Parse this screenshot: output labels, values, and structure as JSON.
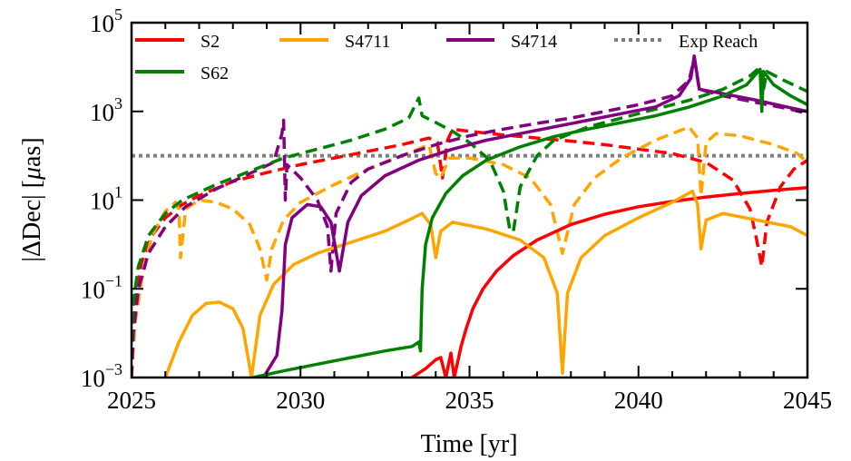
{
  "chart_data": {
    "type": "line",
    "title": "",
    "xlabel": "Time [yr]",
    "ylabel": "|ΔDec| [μas]",
    "ylabel_parts": {
      "prefix": "|ΔDec| [",
      "mu": "μ",
      "suffix": "as]"
    },
    "xscale": "linear",
    "yscale": "log",
    "xlim": [
      2025,
      2045
    ],
    "ylim": [
      0.001,
      100000
    ],
    "xticks": [
      2025,
      2030,
      2035,
      2040,
      2045
    ],
    "xtick_labels": [
      "2025",
      "2030",
      "2035",
      "2040",
      "2045"
    ],
    "yticks": [
      {
        "base": "10",
        "exp": "5",
        "value": 100000
      },
      {
        "base": "10",
        "exp": "3",
        "value": 1000
      },
      {
        "base": "10",
        "exp": "1",
        "value": 10
      },
      {
        "base": "10",
        "exp": "−1",
        "value": 0.1
      },
      {
        "base": "10",
        "exp": "−3",
        "value": 0.001
      }
    ],
    "grid": false,
    "legend": {
      "placement": "top",
      "entries": [
        {
          "label": "S2",
          "color": "#ff0000",
          "style": "solid"
        },
        {
          "label": "S4711",
          "color": "#ffa500",
          "style": "solid"
        },
        {
          "label": "S4714",
          "color": "#800080",
          "style": "solid"
        },
        {
          "label": "Exp Reach",
          "color": "#808080",
          "style": "dotted"
        },
        {
          "label": "S62",
          "color": "#008000",
          "style": "solid"
        }
      ]
    },
    "reference_line": {
      "name": "Exp Reach",
      "value": 100,
      "color": "#808080",
      "style": "dotted"
    },
    "note": "series points are [year, log10(|dDec| in uas)]",
    "series": [
      {
        "name": "S2",
        "variant": "solid",
        "color": "#ff0000",
        "points": [
          [
            2033.3,
            -3.0
          ],
          [
            2033.7,
            -2.8
          ],
          [
            2034.0,
            -2.6
          ],
          [
            2034.15,
            -2.55
          ],
          [
            2034.3,
            -3.0
          ],
          [
            2034.45,
            -2.45
          ],
          [
            2034.55,
            -3.0
          ],
          [
            2034.75,
            -2.3
          ],
          [
            2034.9,
            -1.9
          ],
          [
            2035.1,
            -1.45
          ],
          [
            2035.4,
            -1.0
          ],
          [
            2035.8,
            -0.6
          ],
          [
            2036.3,
            -0.25
          ],
          [
            2037.0,
            0.1
          ],
          [
            2038.0,
            0.45
          ],
          [
            2039.0,
            0.68
          ],
          [
            2040.0,
            0.85
          ],
          [
            2041.0,
            0.97
          ],
          [
            2042.0,
            1.07
          ],
          [
            2043.0,
            1.15
          ],
          [
            2044.0,
            1.22
          ],
          [
            2045.0,
            1.28
          ]
        ]
      },
      {
        "name": "S2",
        "variant": "dashed",
        "color": "#ff0000",
        "points": [
          [
            2025.0,
            -3.0
          ],
          [
            2025.05,
            -1.8
          ],
          [
            2025.15,
            -1.0
          ],
          [
            2025.3,
            -0.4
          ],
          [
            2025.6,
            0.2
          ],
          [
            2026.0,
            0.6
          ],
          [
            2026.5,
            0.9
          ],
          [
            2027.0,
            1.1
          ],
          [
            2028.0,
            1.42
          ],
          [
            2029.0,
            1.62
          ],
          [
            2030.0,
            1.8
          ],
          [
            2031.0,
            1.95
          ],
          [
            2032.0,
            2.1
          ],
          [
            2033.0,
            2.25
          ],
          [
            2033.8,
            2.4
          ],
          [
            2034.05,
            2.3
          ],
          [
            2034.2,
            1.5
          ],
          [
            2034.35,
            2.35
          ],
          [
            2034.5,
            2.6
          ],
          [
            2035.0,
            2.55
          ],
          [
            2036.0,
            2.47
          ],
          [
            2037.0,
            2.4
          ],
          [
            2038.0,
            2.33
          ],
          [
            2039.0,
            2.25
          ],
          [
            2040.0,
            2.15
          ],
          [
            2041.0,
            2.05
          ],
          [
            2042.0,
            1.85
          ],
          [
            2042.8,
            1.45
          ],
          [
            2043.3,
            0.8
          ],
          [
            2043.5,
            0.1
          ],
          [
            2043.65,
            -0.5
          ],
          [
            2043.8,
            0.5
          ],
          [
            2044.2,
            1.3
          ],
          [
            2044.6,
            1.7
          ],
          [
            2045.0,
            1.9
          ]
        ]
      },
      {
        "name": "S4711",
        "variant": "solid",
        "color": "#ffa500",
        "points": [
          [
            2026.0,
            -3.0
          ],
          [
            2026.4,
            -2.2
          ],
          [
            2026.8,
            -1.6
          ],
          [
            2027.2,
            -1.33
          ],
          [
            2027.6,
            -1.3
          ],
          [
            2028.0,
            -1.45
          ],
          [
            2028.3,
            -1.9
          ],
          [
            2028.55,
            -3.0
          ],
          [
            2028.8,
            -1.6
          ],
          [
            2029.2,
            -0.9
          ],
          [
            2029.8,
            -0.45
          ],
          [
            2030.5,
            -0.2
          ],
          [
            2031.5,
            0.05
          ],
          [
            2032.5,
            0.3
          ],
          [
            2033.2,
            0.55
          ],
          [
            2033.6,
            0.7
          ],
          [
            2033.85,
            0.45
          ],
          [
            2034.0,
            -0.3
          ],
          [
            2034.15,
            0.3
          ],
          [
            2034.5,
            0.5
          ],
          [
            2035.5,
            0.35
          ],
          [
            2036.5,
            0.1
          ],
          [
            2037.2,
            -0.3
          ],
          [
            2037.6,
            -1.1
          ],
          [
            2037.75,
            -2.9
          ],
          [
            2037.9,
            -1.1
          ],
          [
            2038.3,
            -0.3
          ],
          [
            2039.0,
            0.2
          ],
          [
            2040.0,
            0.6
          ],
          [
            2041.0,
            0.95
          ],
          [
            2041.6,
            1.2
          ],
          [
            2041.75,
            0.9
          ],
          [
            2041.85,
            -0.1
          ],
          [
            2042.0,
            0.55
          ],
          [
            2042.5,
            0.7
          ],
          [
            2043.5,
            0.55
          ],
          [
            2044.5,
            0.4
          ],
          [
            2045.0,
            0.2
          ]
        ]
      },
      {
        "name": "S4711",
        "variant": "dashed",
        "color": "#ffa500",
        "points": [
          [
            2025.0,
            -3.0
          ],
          [
            2025.1,
            -1.8
          ],
          [
            2025.3,
            -0.8
          ],
          [
            2025.6,
            0.2
          ],
          [
            2026.0,
            0.75
          ],
          [
            2026.3,
            0.95
          ],
          [
            2026.4,
            0.8
          ],
          [
            2026.45,
            -0.3
          ],
          [
            2026.6,
            0.8
          ],
          [
            2027.0,
            1.0
          ],
          [
            2027.5,
            0.95
          ],
          [
            2028.0,
            0.8
          ],
          [
            2028.5,
            0.45
          ],
          [
            2028.8,
            -0.1
          ],
          [
            2029.0,
            -0.8
          ],
          [
            2029.15,
            -0.1
          ],
          [
            2029.5,
            0.55
          ],
          [
            2030.0,
            0.95
          ],
          [
            2031.0,
            1.35
          ],
          [
            2032.0,
            1.7
          ],
          [
            2033.0,
            2.0
          ],
          [
            2033.8,
            2.25
          ],
          [
            2034.0,
            1.6
          ],
          [
            2034.15,
            1.5
          ],
          [
            2034.4,
            1.95
          ],
          [
            2035.0,
            1.95
          ],
          [
            2036.0,
            1.8
          ],
          [
            2036.8,
            1.5
          ],
          [
            2037.4,
            0.9
          ],
          [
            2037.75,
            -0.2
          ],
          [
            2038.1,
            0.9
          ],
          [
            2038.7,
            1.5
          ],
          [
            2039.5,
            1.95
          ],
          [
            2040.5,
            2.35
          ],
          [
            2041.5,
            2.65
          ],
          [
            2041.75,
            2.4
          ],
          [
            2041.85,
            1.1
          ],
          [
            2042.0,
            2.3
          ],
          [
            2042.3,
            2.5
          ],
          [
            2043.0,
            2.45
          ],
          [
            2044.0,
            2.25
          ],
          [
            2044.7,
            2.05
          ],
          [
            2045.0,
            1.85
          ]
        ]
      },
      {
        "name": "S4714",
        "variant": "solid",
        "color": "#800080",
        "points": [
          [
            2028.9,
            -3.0
          ],
          [
            2029.3,
            -2.5
          ],
          [
            2029.45,
            -1.5
          ],
          [
            2029.55,
            0.0
          ],
          [
            2029.75,
            0.6
          ],
          [
            2030.2,
            0.9
          ],
          [
            2030.6,
            0.85
          ],
          [
            2030.9,
            0.5
          ],
          [
            2031.15,
            -0.6
          ],
          [
            2031.4,
            0.5
          ],
          [
            2031.8,
            1.1
          ],
          [
            2032.5,
            1.55
          ],
          [
            2033.5,
            1.9
          ],
          [
            2034.5,
            2.15
          ],
          [
            2035.5,
            2.35
          ],
          [
            2036.5,
            2.5
          ],
          [
            2037.5,
            2.65
          ],
          [
            2038.5,
            2.8
          ],
          [
            2039.5,
            2.95
          ],
          [
            2040.5,
            3.1
          ],
          [
            2041.2,
            3.35
          ],
          [
            2041.55,
            3.75
          ],
          [
            2041.65,
            4.25
          ],
          [
            2041.8,
            3.5
          ],
          [
            2042.5,
            3.4
          ],
          [
            2043.5,
            3.25
          ],
          [
            2044.5,
            3.08
          ],
          [
            2045.0,
            3.0
          ]
        ]
      },
      {
        "name": "S4714",
        "variant": "dashed",
        "color": "#800080",
        "points": [
          [
            2025.0,
            -3.0
          ],
          [
            2025.05,
            -2.0
          ],
          [
            2025.2,
            -1.0
          ],
          [
            2025.5,
            -0.2
          ],
          [
            2026.0,
            0.4
          ],
          [
            2026.6,
            0.85
          ],
          [
            2027.5,
            1.25
          ],
          [
            2028.5,
            1.6
          ],
          [
            2029.2,
            1.85
          ],
          [
            2029.45,
            2.5
          ],
          [
            2029.5,
            2.8
          ],
          [
            2029.55,
            1.0
          ],
          [
            2029.6,
            1.8
          ],
          [
            2030.0,
            1.5
          ],
          [
            2030.5,
            1.0
          ],
          [
            2030.8,
            0.4
          ],
          [
            2030.9,
            -0.6
          ],
          [
            2031.05,
            0.7
          ],
          [
            2031.5,
            1.4
          ],
          [
            2032.0,
            1.7
          ],
          [
            2033.0,
            2.0
          ],
          [
            2034.0,
            2.25
          ],
          [
            2035.0,
            2.45
          ],
          [
            2036.0,
            2.6
          ],
          [
            2037.0,
            2.73
          ],
          [
            2038.0,
            2.85
          ],
          [
            2039.0,
            3.0
          ],
          [
            2040.0,
            3.15
          ],
          [
            2041.0,
            3.35
          ],
          [
            2041.5,
            3.7
          ],
          [
            2041.65,
            4.2
          ],
          [
            2041.8,
            3.5
          ],
          [
            2042.5,
            3.35
          ],
          [
            2043.5,
            3.2
          ],
          [
            2044.5,
            3.05
          ],
          [
            2045.0,
            2.95
          ]
        ]
      },
      {
        "name": "S62",
        "variant": "solid",
        "color": "#008000",
        "points": [
          [
            2028.6,
            -3.0
          ],
          [
            2029.5,
            -2.85
          ],
          [
            2030.5,
            -2.7
          ],
          [
            2031.5,
            -2.55
          ],
          [
            2032.5,
            -2.4
          ],
          [
            2033.3,
            -2.3
          ],
          [
            2033.5,
            -2.2
          ],
          [
            2033.55,
            -2.4
          ],
          [
            2033.6,
            -1.0
          ],
          [
            2033.7,
            0.0
          ],
          [
            2033.9,
            0.6
          ],
          [
            2034.3,
            1.15
          ],
          [
            2034.8,
            1.55
          ],
          [
            2035.5,
            1.9
          ],
          [
            2036.5,
            2.2
          ],
          [
            2037.5,
            2.43
          ],
          [
            2038.5,
            2.6
          ],
          [
            2039.5,
            2.75
          ],
          [
            2040.5,
            2.9
          ],
          [
            2041.5,
            3.1
          ],
          [
            2042.5,
            3.35
          ],
          [
            2043.2,
            3.6
          ],
          [
            2043.6,
            3.95
          ],
          [
            2043.65,
            3.0
          ],
          [
            2043.7,
            3.9
          ],
          [
            2044.0,
            3.6
          ],
          [
            2044.5,
            3.35
          ],
          [
            2045.0,
            3.15
          ]
        ]
      },
      {
        "name": "S62",
        "variant": "dashed",
        "color": "#008000",
        "points": [
          [
            2025.0,
            -2.2
          ],
          [
            2025.05,
            -1.3
          ],
          [
            2025.2,
            -0.5
          ],
          [
            2025.5,
            0.2
          ],
          [
            2026.0,
            0.7
          ],
          [
            2026.5,
            1.0
          ],
          [
            2027.5,
            1.35
          ],
          [
            2028.5,
            1.65
          ],
          [
            2029.5,
            1.95
          ],
          [
            2030.5,
            2.15
          ],
          [
            2031.5,
            2.35
          ],
          [
            2032.5,
            2.6
          ],
          [
            2033.2,
            2.85
          ],
          [
            2033.5,
            3.3
          ],
          [
            2033.6,
            2.9
          ],
          [
            2034.0,
            2.75
          ],
          [
            2034.5,
            2.55
          ],
          [
            2035.0,
            2.3
          ],
          [
            2035.6,
            1.9
          ],
          [
            2036.0,
            1.2
          ],
          [
            2036.2,
            0.3
          ],
          [
            2036.3,
            0.3
          ],
          [
            2036.5,
            1.3
          ],
          [
            2037.0,
            2.0
          ],
          [
            2037.5,
            2.35
          ],
          [
            2038.5,
            2.65
          ],
          [
            2039.5,
            2.85
          ],
          [
            2040.5,
            3.05
          ],
          [
            2041.5,
            3.25
          ],
          [
            2042.5,
            3.5
          ],
          [
            2043.3,
            3.8
          ],
          [
            2043.6,
            4.0
          ],
          [
            2043.65,
            3.3
          ],
          [
            2043.8,
            3.9
          ],
          [
            2044.3,
            3.7
          ],
          [
            2045.0,
            3.45
          ]
        ]
      }
    ]
  }
}
